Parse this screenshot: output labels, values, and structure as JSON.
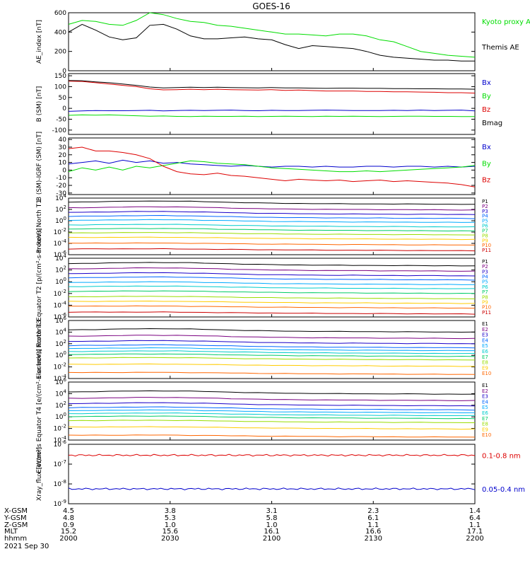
{
  "title": "GOES-16",
  "footer": {
    "labels": [
      "X-GSM",
      "Y-GSM",
      "Z-GSM",
      "MLT",
      "hhmm"
    ],
    "date": "2021 Sep 30",
    "columns": [
      [
        "4.5",
        "4.8",
        "0.9",
        "15.2",
        "2000"
      ],
      [
        "3.8",
        "5.3",
        "1.0",
        "15.6",
        "2030"
      ],
      [
        "3.1",
        "5.8",
        "1.0",
        "16.1",
        "2100"
      ],
      [
        "2.3",
        "6.1",
        "1.1",
        "16.6",
        "2130"
      ],
      [
        "1.4",
        "6.4",
        "1.1",
        "17.1",
        "2200"
      ]
    ]
  },
  "colors": {
    "black": "#000000",
    "green": "#00dd00",
    "blue": "#0000cc",
    "red": "#dd0000",
    "channels": [
      "#000000",
      "#7a0080",
      "#1a00c8",
      "#0066ff",
      "#00aaff",
      "#00cccc",
      "#00cc66",
      "#99dd00",
      "#ffcc00",
      "#ff6600",
      "#cc0000"
    ]
  },
  "chart_data": [
    {
      "type": "line",
      "panel": "ae",
      "ylabel": "AE_index [nT]",
      "ylim": [
        0,
        600
      ],
      "yticks": [
        "0",
        "200",
        "400",
        "600"
      ],
      "x_hhmm": [
        2000,
        2004,
        2008,
        2012,
        2016,
        2020,
        2024,
        2028,
        2032,
        2036,
        2040,
        2044,
        2048,
        2052,
        2056,
        2100,
        2104,
        2108,
        2112,
        2116,
        2120,
        2124,
        2128,
        2132,
        2136,
        2140,
        2144,
        2148,
        2152,
        2156,
        2200
      ],
      "series": [
        {
          "name": "Kyoto proxy AE",
          "color": "green",
          "values": [
            480,
            520,
            510,
            480,
            470,
            520,
            600,
            580,
            540,
            510,
            500,
            470,
            460,
            440,
            420,
            400,
            380,
            380,
            370,
            360,
            380,
            380,
            360,
            320,
            300,
            250,
            200,
            180,
            160,
            150,
            140
          ]
        },
        {
          "name": "Themis AE",
          "color": "black",
          "values": [
            400,
            480,
            420,
            350,
            320,
            340,
            470,
            480,
            430,
            360,
            330,
            330,
            340,
            350,
            330,
            320,
            270,
            230,
            260,
            250,
            240,
            230,
            200,
            160,
            140,
            130,
            120,
            110,
            110,
            100,
            100
          ]
        }
      ]
    },
    {
      "type": "line",
      "panel": "bsm",
      "ylabel": "B (SM) [nT]",
      "ylim": [
        -120,
        160
      ],
      "yticks": [
        "-100",
        "-50",
        "0",
        "50",
        "100",
        "150"
      ],
      "series": [
        {
          "name": "Bx",
          "color": "blue",
          "values": [
            -14,
            -12,
            -10,
            -11,
            -11,
            -10,
            -9,
            -12,
            -10,
            -9,
            -10,
            -9,
            -8,
            -10,
            -11,
            -9,
            -10,
            -10,
            -9,
            -8,
            -9,
            -10,
            -10,
            -10,
            -9,
            -10,
            -8,
            -10,
            -9,
            -8,
            -12
          ]
        },
        {
          "name": "By",
          "color": "green",
          "values": [
            -32,
            -30,
            -31,
            -30,
            -32,
            -34,
            -36,
            -35,
            -37,
            -38,
            -36,
            -37,
            -37,
            -36,
            -38,
            -37,
            -36,
            -37,
            -38,
            -36,
            -37,
            -36,
            -37,
            -38,
            -37,
            -36,
            -36,
            -37,
            -37,
            -38,
            -38
          ]
        },
        {
          "name": "Bz",
          "color": "red",
          "values": [
            125,
            124,
            118,
            112,
            106,
            100,
            90,
            85,
            86,
            88,
            86,
            88,
            86,
            85,
            84,
            86,
            83,
            84,
            82,
            80,
            80,
            80,
            78,
            78,
            76,
            76,
            75,
            74,
            72,
            72,
            70
          ]
        },
        {
          "name": "Bmag",
          "color": "black",
          "values": [
            128,
            127,
            122,
            118,
            112,
            106,
            98,
            94,
            96,
            97,
            96,
            97,
            96,
            95,
            94,
            96,
            94,
            94,
            93,
            92,
            93,
            93,
            92,
            92,
            91,
            91,
            90,
            90,
            89,
            89,
            88
          ]
        }
      ]
    },
    {
      "type": "line",
      "panel": "bigrf",
      "ylabel": "B (SM)-IGRF (SM) [nT]",
      "ylim": [
        -32,
        42
      ],
      "yticks": [
        "-30",
        "-20",
        "-10",
        "0",
        "10",
        "20",
        "30",
        "40"
      ],
      "series": [
        {
          "name": "Bx",
          "color": "blue",
          "values": [
            8,
            10,
            12,
            9,
            13,
            10,
            12,
            9,
            10,
            8,
            7,
            6,
            5,
            6,
            5,
            4,
            5,
            5,
            4,
            5,
            4,
            4,
            5,
            5,
            4,
            5,
            5,
            4,
            5,
            4,
            5
          ]
        },
        {
          "name": "By",
          "color": "green",
          "values": [
            -2,
            3,
            0,
            4,
            0,
            5,
            3,
            6,
            9,
            12,
            11,
            9,
            8,
            7,
            5,
            3,
            2,
            1,
            0,
            -1,
            -2,
            -2,
            -1,
            -2,
            -1,
            0,
            1,
            2,
            3,
            4,
            6
          ]
        },
        {
          "name": "Bz",
          "color": "red",
          "values": [
            28,
            30,
            25,
            25,
            23,
            20,
            15,
            5,
            -2,
            -5,
            -6,
            -4,
            -7,
            -8,
            -10,
            -12,
            -14,
            -12,
            -13,
            -14,
            -13,
            -15,
            -14,
            -13,
            -15,
            -14,
            -15,
            -16,
            -17,
            -19,
            -22
          ]
        }
      ]
    },
    {
      "type": "line",
      "panel": "pt1",
      "yscale": "log",
      "ylabel": "Protons North T1",
      "ylim_exp": [
        -6,
        4
      ],
      "yticks": [
        "10^4",
        "10^2",
        "10^0",
        "10^-2",
        "10^-4",
        "10^-6"
      ],
      "legend": [
        "P1",
        "P2",
        "P3",
        "P4",
        "P5",
        "P6",
        "P7",
        "P8",
        "P9",
        "P10",
        "P11"
      ],
      "series_exp": [
        3.2,
        2.2,
        1.4,
        0.7,
        0.0,
        -0.8,
        -1.5,
        -2.2,
        -3.0,
        -4.0,
        -5.0
      ]
    },
    {
      "type": "line",
      "panel": "pt2",
      "yscale": "log",
      "ylabel": "Protons Equator T2 [p/(cm²-s-sr-keV)]",
      "ylim_exp": [
        -6,
        4
      ],
      "yticks": [
        "10^4",
        "10^2",
        "10^0",
        "10^-2",
        "10^-4",
        "10^-6"
      ],
      "legend": [
        "P1",
        "P2",
        "P3",
        "P4",
        "P5",
        "P6",
        "P7",
        "P8",
        "P9",
        "P10",
        "P11"
      ],
      "series_exp": [
        3.0,
        2.1,
        1.3,
        0.6,
        -0.2,
        -0.9,
        -1.7,
        -2.6,
        -3.4,
        -4.2,
        -5.2
      ]
    },
    {
      "type": "line",
      "panel": "et3",
      "yscale": "log",
      "ylabel": "Electrons North T3",
      "ylim_exp": [
        -4,
        6
      ],
      "yticks": [
        "10^6",
        "10^4",
        "10^2",
        "10^0",
        "10^-2",
        "10^-4"
      ],
      "legend": [
        "E1",
        "E2",
        "E3",
        "E4",
        "E5",
        "E6",
        "E7",
        "E8",
        "E9",
        "E10"
      ],
      "series_exp": [
        4.3,
        3.2,
        2.3,
        1.6,
        1.1,
        0.6,
        0.1,
        -0.5,
        -1.6,
        -3.0
      ]
    },
    {
      "type": "line",
      "panel": "et4",
      "yscale": "log",
      "ylabel": "Electrons Equator T4 [e/(cm²-s-sr-keV)]",
      "ylim_exp": [
        -4,
        6
      ],
      "yticks": [
        "10^6",
        "10^4",
        "10^2",
        "10^0",
        "10^-2",
        "10^-4"
      ],
      "legend": [
        "E1",
        "E2",
        "E3",
        "E4",
        "E5",
        "E6",
        "E7",
        "E8",
        "E9",
        "E10"
      ],
      "series_exp": [
        4.2,
        3.1,
        2.2,
        1.5,
        1.0,
        0.5,
        0.0,
        -0.7,
        -1.8,
        -3.2
      ]
    },
    {
      "type": "line",
      "panel": "xray",
      "yscale": "log",
      "ylabel": "Xray_flux [W/m²]",
      "ylim_exp": [
        -9,
        -6
      ],
      "yticks": [
        "10^-6",
        "10^-7",
        "10^-8",
        "10^-9"
      ],
      "series": [
        {
          "name": "0.1-0.8 nm",
          "color": "red",
          "exp": -6.55
        },
        {
          "name": "0.05-0.4 nm",
          "color": "blue",
          "exp": -8.25
        }
      ]
    }
  ]
}
